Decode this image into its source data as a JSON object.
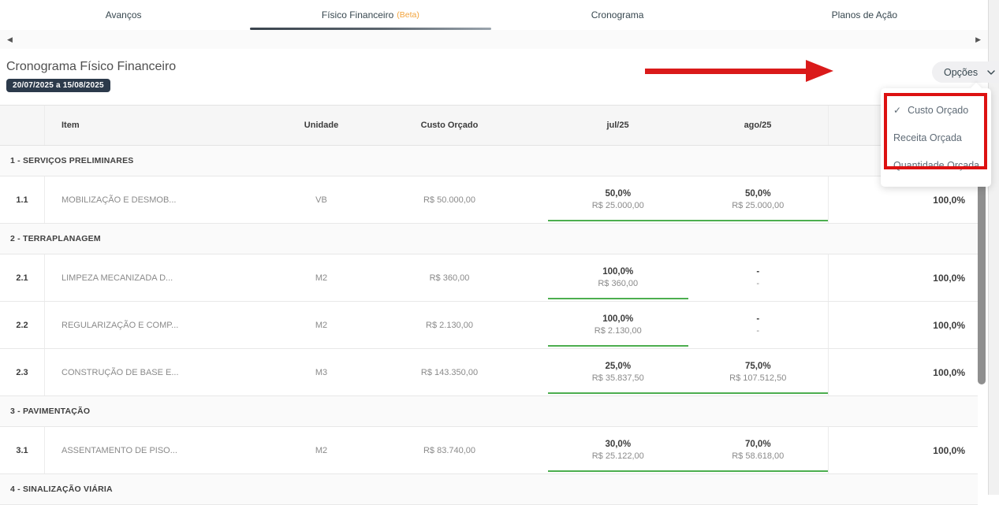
{
  "colors": {
    "green": "#4cae4f",
    "red": "#da1a1a",
    "badge_bg": "#2c3a4b",
    "beta_orange": "#f2a33c",
    "tab_text": "#37474f",
    "header_bg": "#f6f6f6",
    "section_bg": "#fafafa",
    "border": "#e8e8e8",
    "text_dark": "#3c3c3c",
    "text_gray": "#8a8a8a",
    "menu_text": "#5f6b76",
    "button_bg": "#f0f0f2",
    "scrollbar": "#8f8f8f"
  },
  "icons": {
    "prev_arrow": "◀",
    "next_arrow": "▶",
    "check": "✓",
    "chevron_down": "⌄"
  },
  "tabs": {
    "items": [
      {
        "label": "Avanços",
        "active": false
      },
      {
        "label": "Físico Financeiro",
        "badge": "(Beta)",
        "active": true
      },
      {
        "label": "Cronograma",
        "active": false
      },
      {
        "label": "Planos de Ação",
        "active": false
      }
    ]
  },
  "page": {
    "title": "Cronograma Físico Financeiro",
    "period_badge": "20/07/2025 a 15/08/2025",
    "options_button": "Opções"
  },
  "options_menu": {
    "items": [
      {
        "label": "Custo Orçado",
        "checked": true
      },
      {
        "label": "Receita Orçada",
        "checked": false
      },
      {
        "label": "Quantidade Orçada",
        "checked": false
      }
    ]
  },
  "table": {
    "headers": {
      "item": "Item",
      "unidade": "Unidade",
      "custo": "Custo Orçado",
      "months": [
        "jul/25",
        "ago/25"
      ],
      "total": ""
    },
    "sections": [
      {
        "title": "1 - SERVIÇOS PRELIMINARES",
        "rows": [
          {
            "num": "1.1",
            "name": "MOBILIZAÇÃO E DESMOB...",
            "unidade": "VB",
            "custo": "R$ 50.000,00",
            "months": [
              {
                "pct": "50,0%",
                "value": "R$ 25.000,00"
              },
              {
                "pct": "50,0%",
                "value": "R$ 25.000,00"
              }
            ],
            "total": "100,0%",
            "bar_pct": 100
          }
        ]
      },
      {
        "title": "2 - TERRAPLANAGEM",
        "rows": [
          {
            "num": "2.1",
            "name": "LIMPEZA MECANIZADA D...",
            "unidade": "M2",
            "custo": "R$ 360,00",
            "months": [
              {
                "pct": "100,0%",
                "value": "R$ 360,00"
              },
              {
                "pct": "-",
                "value": "-"
              }
            ],
            "total": "100,0%",
            "bar_pct": 50
          },
          {
            "num": "2.2",
            "name": "REGULARIZAÇÃO E COMP...",
            "unidade": "M2",
            "custo": "R$ 2.130,00",
            "months": [
              {
                "pct": "100,0%",
                "value": "R$ 2.130,00"
              },
              {
                "pct": "-",
                "value": "-"
              }
            ],
            "total": "100,0%",
            "bar_pct": 50
          },
          {
            "num": "2.3",
            "name": "CONSTRUÇÃO DE BASE E...",
            "unidade": "M3",
            "custo": "R$ 143.350,00",
            "months": [
              {
                "pct": "25,0%",
                "value": "R$ 35.837,50"
              },
              {
                "pct": "75,0%",
                "value": "R$ 107.512,50"
              }
            ],
            "total": "100,0%",
            "bar_pct": 100
          }
        ]
      },
      {
        "title": "3 - PAVIMENTAÇÃO",
        "rows": [
          {
            "num": "3.1",
            "name": "ASSENTAMENTO DE PISO...",
            "unidade": "M2",
            "custo": "R$ 83.740,00",
            "months": [
              {
                "pct": "30,0%",
                "value": "R$ 25.122,00"
              },
              {
                "pct": "70,0%",
                "value": "R$ 58.618,00"
              }
            ],
            "total": "100,0%",
            "bar_pct": 100
          }
        ]
      },
      {
        "title": "4 - SINALIZAÇÃO VIÁRIA",
        "rows": []
      }
    ]
  }
}
